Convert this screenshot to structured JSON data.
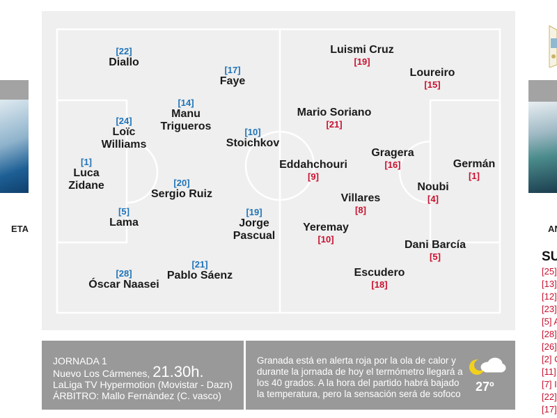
{
  "left_coach": "ETA",
  "right_coach": "AN",
  "subs": {
    "title": "SU",
    "items": [
      "[25]",
      "[13]",
      "[12]",
      "[23]",
      "[5] A",
      "[28]",
      "[26]",
      "[2] C",
      "[11]",
      "[7] I",
      "[22]",
      "[17]"
    ]
  },
  "home_players": [
    {
      "num": "[22]",
      "name": "Diallo"
    },
    {
      "num": "[17]",
      "name": "Faye"
    },
    {
      "num": "[14]",
      "name": "Manu Trigueros"
    },
    {
      "num": "[24]",
      "name": "Loïc Williams"
    },
    {
      "num": "[10]",
      "name": "Stoichkov"
    },
    {
      "num": "[1]",
      "name": "Luca Zidane"
    },
    {
      "num": "[20]",
      "name": "Sergio Ruiz"
    },
    {
      "num": "[5]",
      "name": "Lama"
    },
    {
      "num": "[19]",
      "name": "Jorge Pascual"
    },
    {
      "num": "[28]",
      "name": "Óscar Naasei"
    },
    {
      "num": "[21]",
      "name": "Pablo Sáenz"
    }
  ],
  "away_players": [
    {
      "num": "[19]",
      "name": "Luismi Cruz"
    },
    {
      "num": "[15]",
      "name": "Loureiro"
    },
    {
      "num": "[21]",
      "name": "Mario Soriano"
    },
    {
      "num": "[9]",
      "name": "Eddahchouri"
    },
    {
      "num": "[16]",
      "name": "Gragera"
    },
    {
      "num": "[1]",
      "name": "Germán"
    },
    {
      "num": "[4]",
      "name": "Noubi"
    },
    {
      "num": "[8]",
      "name": "Villares"
    },
    {
      "num": "[10]",
      "name": "Yeremay"
    },
    {
      "num": "[5]",
      "name": "Dani Barcía"
    },
    {
      "num": "[18]",
      "name": "Escudero"
    }
  ],
  "match": {
    "jornada": "JORNADA 1",
    "venue": "Nuevo Los Cármenes,",
    "time": "21.30h.",
    "tv": "LaLiga TV Hypermotion (Movistar - Dazn)",
    "referee": "ÁRBITRO: Mallo Fernández (C. vasco)"
  },
  "weather": {
    "text": "Granada está en alerta roja por la ola de calor y durante la jornada de hoy el termómetro llegará a los 40 grados. A la hora del partido habrá bajado la temperatura, pero la sensación será de sofoco",
    "temp": "27º",
    "icon": "sun-cloud-icon",
    "colors": {
      "sun": "#f2d11c",
      "cloud": "#ffffff"
    }
  },
  "colors": {
    "home": "#1f73b7",
    "away": "#c8102e",
    "panel": "#999999",
    "pitch": "#efefef"
  }
}
